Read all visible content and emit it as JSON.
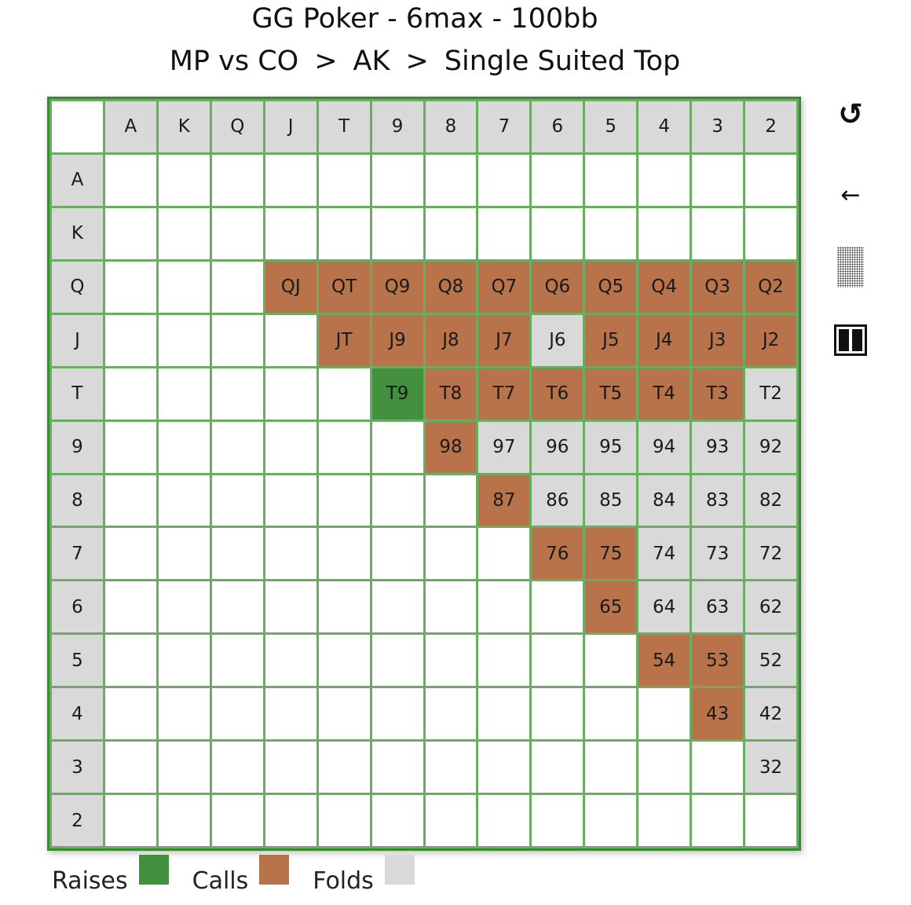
{
  "title": "GG Poker - 6max - 100bb",
  "breadcrumb": {
    "part1": "MP vs CO",
    "sep1": ">",
    "part2": "AK",
    "sep2": ">",
    "part3": "Single Suited Top"
  },
  "ranks": [
    "A",
    "K",
    "Q",
    "J",
    "T",
    "9",
    "8",
    "7",
    "6",
    "5",
    "4",
    "3",
    "2"
  ],
  "colors": {
    "raise": "#43903f",
    "call": "#b8734a",
    "fold": "#d9d9d9",
    "grid_lines": "#6cab62",
    "frame": "#3a8a35"
  },
  "hands": [
    {
      "label": "QJ",
      "action": "call"
    },
    {
      "label": "QT",
      "action": "call"
    },
    {
      "label": "Q9",
      "action": "call"
    },
    {
      "label": "Q8",
      "action": "call"
    },
    {
      "label": "Q7",
      "action": "call"
    },
    {
      "label": "Q6",
      "action": "call"
    },
    {
      "label": "Q5",
      "action": "call"
    },
    {
      "label": "Q4",
      "action": "call"
    },
    {
      "label": "Q3",
      "action": "call"
    },
    {
      "label": "Q2",
      "action": "call"
    },
    {
      "label": "JT",
      "action": "call"
    },
    {
      "label": "J9",
      "action": "call"
    },
    {
      "label": "J8",
      "action": "call"
    },
    {
      "label": "J7",
      "action": "call"
    },
    {
      "label": "J6",
      "action": "fold"
    },
    {
      "label": "J5",
      "action": "call"
    },
    {
      "label": "J4",
      "action": "call"
    },
    {
      "label": "J3",
      "action": "call"
    },
    {
      "label": "J2",
      "action": "call"
    },
    {
      "label": "T9",
      "action": "raise"
    },
    {
      "label": "T8",
      "action": "call"
    },
    {
      "label": "T7",
      "action": "call"
    },
    {
      "label": "T6",
      "action": "call"
    },
    {
      "label": "T5",
      "action": "call"
    },
    {
      "label": "T4",
      "action": "call"
    },
    {
      "label": "T3",
      "action": "call"
    },
    {
      "label": "T2",
      "action": "fold"
    },
    {
      "label": "98",
      "action": "call"
    },
    {
      "label": "97",
      "action": "fold"
    },
    {
      "label": "96",
      "action": "fold"
    },
    {
      "label": "95",
      "action": "fold"
    },
    {
      "label": "94",
      "action": "fold"
    },
    {
      "label": "93",
      "action": "fold"
    },
    {
      "label": "92",
      "action": "fold"
    },
    {
      "label": "87",
      "action": "call"
    },
    {
      "label": "86",
      "action": "fold"
    },
    {
      "label": "85",
      "action": "fold"
    },
    {
      "label": "84",
      "action": "fold"
    },
    {
      "label": "83",
      "action": "fold"
    },
    {
      "label": "82",
      "action": "fold"
    },
    {
      "label": "76",
      "action": "call"
    },
    {
      "label": "75",
      "action": "call"
    },
    {
      "label": "74",
      "action": "fold"
    },
    {
      "label": "73",
      "action": "fold"
    },
    {
      "label": "72",
      "action": "fold"
    },
    {
      "label": "65",
      "action": "call"
    },
    {
      "label": "64",
      "action": "fold"
    },
    {
      "label": "63",
      "action": "fold"
    },
    {
      "label": "62",
      "action": "fold"
    },
    {
      "label": "54",
      "action": "call"
    },
    {
      "label": "53",
      "action": "call"
    },
    {
      "label": "52",
      "action": "fold"
    },
    {
      "label": "43",
      "action": "call"
    },
    {
      "label": "42",
      "action": "fold"
    },
    {
      "label": "32",
      "action": "fold"
    }
  ],
  "toolbar": {
    "reset_icon": "↺",
    "back_icon": "←"
  },
  "legend": [
    {
      "label": "Raises",
      "color": "#43903f"
    },
    {
      "label": "Calls",
      "color": "#b8734a"
    },
    {
      "label": "Folds",
      "color": "#d9d9d9"
    }
  ]
}
